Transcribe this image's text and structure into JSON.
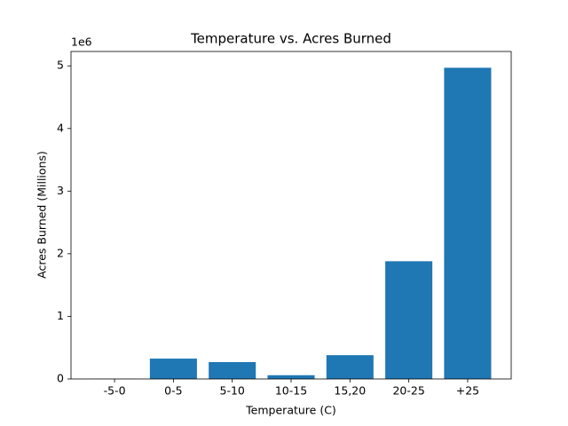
{
  "chart_data": {
    "type": "bar",
    "title": "Temperature vs. Acres Burned",
    "x_label": "Temperature (C)",
    "y_label": "Acres Burned (Millions)",
    "y_offset_text": "1e6",
    "categories": [
      "-5-0",
      "0-5",
      "5-10",
      "10-15",
      "15,20",
      "20-25",
      "+25"
    ],
    "values": [
      0.003,
      0.325,
      0.27,
      0.06,
      0.38,
      1.88,
      4.97
    ],
    "color": "#1f77b4",
    "ylim": [
      0,
      5.23
    ],
    "yticks": [
      0,
      1,
      2,
      3,
      4,
      5
    ],
    "grid": false
  }
}
